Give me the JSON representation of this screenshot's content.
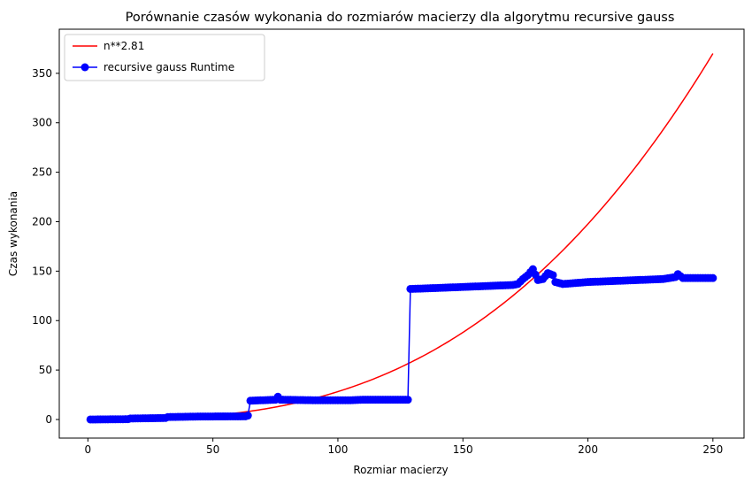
{
  "chart_data": {
    "type": "line",
    "title": "Porównanie czasów wykonania do rozmiarów macierzy dla algorytmu recursive gauss",
    "xlabel": "Rozmiar macierzy",
    "ylabel": "Czas wykonania",
    "xlim": [
      -11.45,
      262.45
    ],
    "ylim": [
      -18.8,
      394.6
    ],
    "xticks": [
      0,
      50,
      100,
      150,
      200,
      250
    ],
    "yticks": [
      0,
      50,
      100,
      150,
      200,
      250,
      300,
      350
    ],
    "grid": false,
    "legend_position": "top-left",
    "series": [
      {
        "name": "n**2.81",
        "kind": "curve",
        "color": "#ff0000",
        "formula_coefficient": 6.76e-05,
        "formula_exponent": 2.81,
        "x_range": [
          1,
          250
        ]
      },
      {
        "name": "recursive gauss Runtime",
        "kind": "line-with-markers",
        "color": "#0000ff",
        "points": [
          [
            1,
            0
          ],
          [
            16,
            0.3
          ],
          [
            17,
            1
          ],
          [
            31,
            1.5
          ],
          [
            32,
            2.5
          ],
          [
            45,
            3
          ],
          [
            63,
            3.2
          ],
          [
            64,
            4
          ],
          [
            65,
            19
          ],
          [
            70,
            19.5
          ],
          [
            75,
            20
          ],
          [
            76,
            23
          ],
          [
            77,
            20
          ],
          [
            90,
            19.5
          ],
          [
            105,
            19.5
          ],
          [
            110,
            20
          ],
          [
            128,
            20
          ],
          [
            129,
            132
          ],
          [
            140,
            133
          ],
          [
            150,
            134
          ],
          [
            160,
            135
          ],
          [
            170,
            136
          ],
          [
            172,
            137
          ],
          [
            174,
            142
          ],
          [
            176,
            146
          ],
          [
            178,
            152
          ],
          [
            180,
            141
          ],
          [
            182,
            142
          ],
          [
            184,
            148
          ],
          [
            186,
            146
          ],
          [
            187,
            139
          ],
          [
            190,
            137
          ],
          [
            200,
            139
          ],
          [
            210,
            140
          ],
          [
            220,
            141
          ],
          [
            230,
            142
          ],
          [
            235,
            144
          ],
          [
            236,
            147
          ],
          [
            238,
            143
          ],
          [
            245,
            143
          ],
          [
            250,
            143
          ]
        ]
      }
    ]
  }
}
